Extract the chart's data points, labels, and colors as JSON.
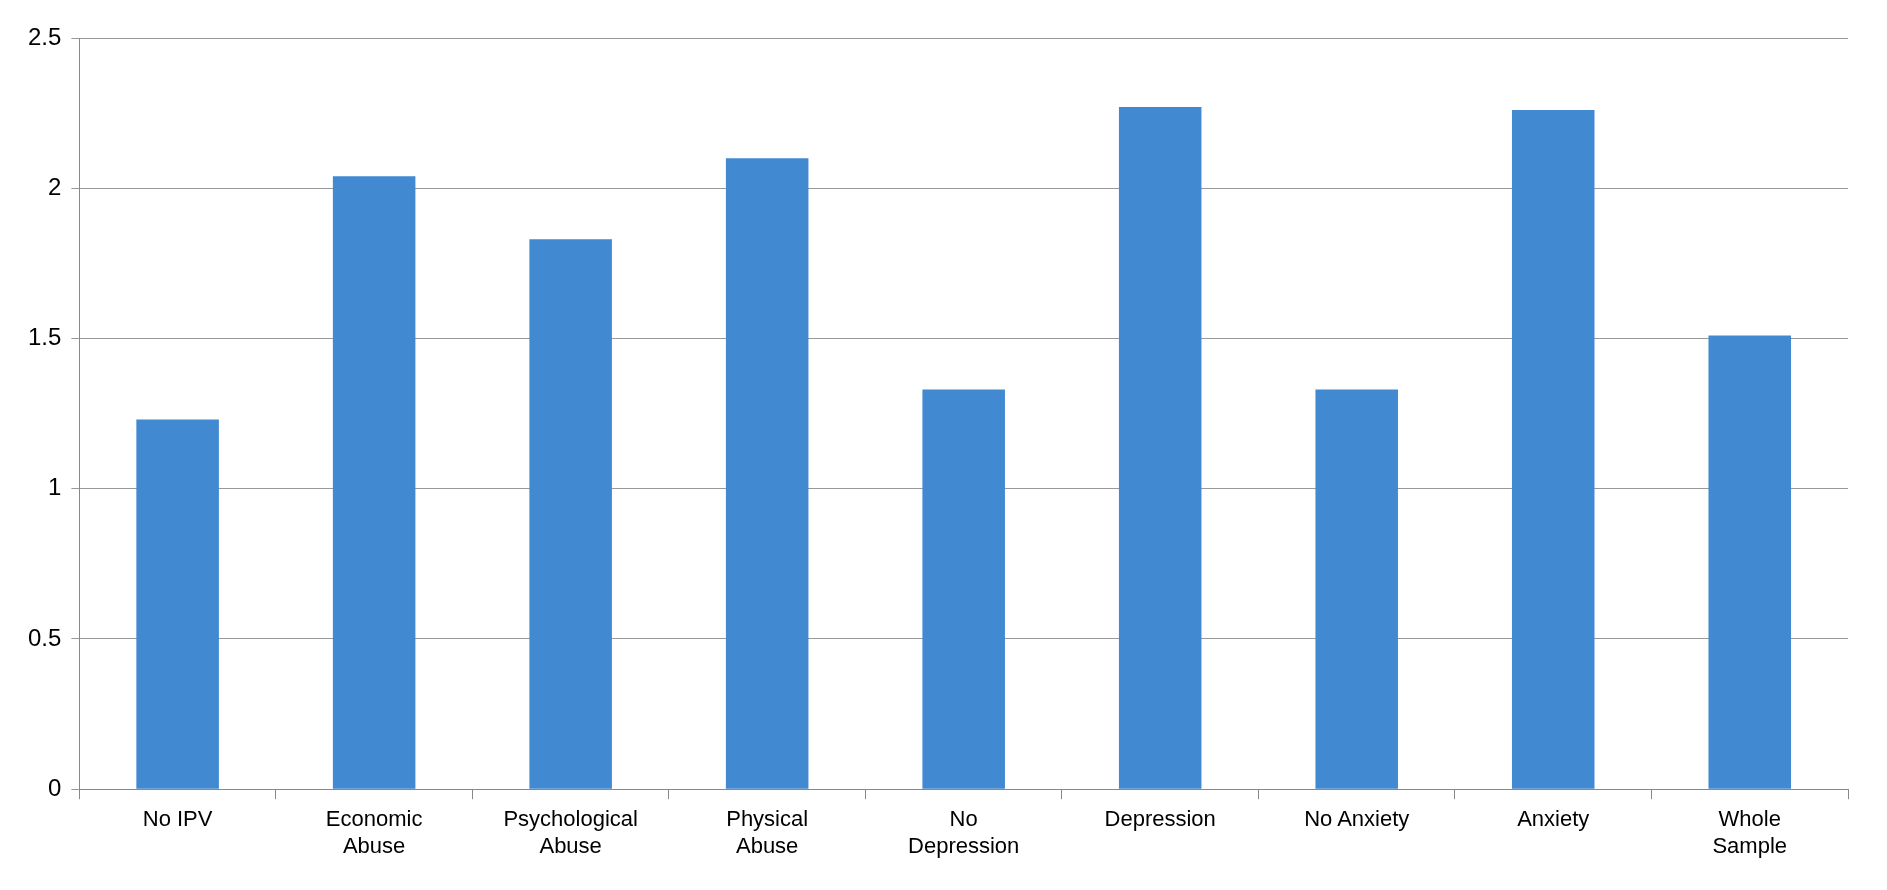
{
  "chart_data": {
    "type": "bar",
    "categories": [
      "No IPV",
      "Economic Abuse",
      "Psychological Abuse",
      "Physical Abuse",
      "No Depression",
      "Depression",
      "No Anxiety",
      "Anxiety",
      "Whole Sample"
    ],
    "values": [
      1.23,
      2.04,
      1.83,
      2.1,
      1.33,
      2.27,
      1.33,
      2.26,
      1.51
    ],
    "color": "#4189d0",
    "ylim": [
      0,
      2.5
    ],
    "yticks": [
      0,
      0.5,
      1,
      1.5,
      2,
      2.5
    ],
    "grid": "y"
  }
}
